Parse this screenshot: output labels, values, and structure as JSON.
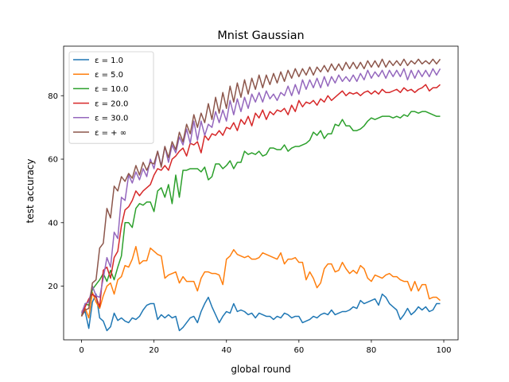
{
  "chart_data": {
    "type": "line",
    "title": "Mnist Gaussian",
    "xlabel": "global round",
    "ylabel": "test accuracy",
    "xlim": [
      -4.95,
      103.95
    ],
    "ylim": [
      3.1,
      95.6
    ],
    "xticks": [
      0,
      20,
      40,
      60,
      80,
      100
    ],
    "yticks": [
      20,
      40,
      60,
      80
    ],
    "grid": false,
    "legend": "top-left",
    "x": [
      0,
      1,
      2,
      3,
      4,
      5,
      6,
      7,
      8,
      9,
      10,
      11,
      12,
      13,
      14,
      15,
      16,
      17,
      18,
      19,
      20,
      21,
      22,
      23,
      24,
      25,
      26,
      27,
      28,
      29,
      30,
      31,
      32,
      33,
      34,
      35,
      36,
      37,
      38,
      39,
      40,
      41,
      42,
      43,
      44,
      45,
      46,
      47,
      48,
      49,
      50,
      51,
      52,
      53,
      54,
      55,
      56,
      57,
      58,
      59,
      60,
      61,
      62,
      63,
      64,
      65,
      66,
      67,
      68,
      69,
      70,
      71,
      72,
      73,
      74,
      75,
      76,
      77,
      78,
      79,
      80,
      81,
      82,
      83,
      84,
      85,
      86,
      87,
      88,
      89,
      90,
      91,
      92,
      93,
      94,
      95,
      96,
      97,
      98,
      99
    ],
    "series": [
      {
        "name": "ε = 1.0",
        "color": "#1f77b4",
        "values": [
          11.0,
          12.0,
          6.7,
          15.0,
          17.5,
          10.0,
          9.0,
          6.0,
          7.2,
          11.5,
          9.2,
          10.0,
          9.0,
          8.5,
          10.0,
          9.5,
          10.5,
          12.5,
          14.0,
          14.5,
          14.5,
          9.5,
          11.0,
          10.0,
          11.0,
          10.0,
          10.5,
          6.0,
          7.0,
          8.5,
          10.0,
          10.5,
          8.5,
          12.0,
          14.5,
          16.5,
          13.5,
          11.0,
          8.5,
          10.5,
          12.0,
          11.5,
          14.5,
          12.0,
          12.5,
          12.0,
          11.0,
          11.5,
          10.0,
          11.5,
          11.0,
          10.5,
          10.5,
          9.5,
          10.5,
          10.0,
          11.5,
          11.0,
          10.0,
          10.5,
          10.5,
          8.5,
          9.0,
          9.5,
          10.5,
          10.0,
          11.0,
          11.5,
          11.0,
          12.5,
          11.0,
          11.5,
          12.0,
          12.0,
          12.5,
          13.5,
          13.0,
          15.5,
          14.5,
          15.0,
          15.5,
          16.0,
          14.0,
          17.5,
          16.5,
          14.5,
          13.5,
          12.5,
          9.5,
          11.0,
          13.0,
          11.0,
          12.0,
          13.5,
          12.5,
          13.5,
          12.0,
          12.5,
          14.5,
          14.5
        ]
      },
      {
        "name": "ε = 5.0",
        "color": "#ff7f0e",
        "values": [
          12.0,
          13.0,
          10.0,
          18.0,
          15.0,
          13.0,
          17.0,
          20.0,
          21.0,
          17.5,
          22.0,
          23.0,
          26.5,
          26.0,
          28.5,
          32.5,
          27.0,
          28.0,
          28.0,
          32.0,
          31.0,
          30.0,
          29.5,
          22.5,
          23.5,
          24.0,
          24.5,
          21.0,
          23.0,
          21.5,
          21.5,
          21.5,
          18.5,
          22.5,
          24.5,
          24.5,
          24.0,
          24.0,
          23.5,
          20.5,
          28.5,
          29.5,
          31.5,
          30.0,
          29.5,
          29.0,
          29.5,
          28.5,
          28.5,
          29.0,
          30.5,
          30.0,
          29.5,
          29.0,
          28.5,
          30.5,
          27.0,
          28.5,
          28.5,
          29.0,
          27.5,
          27.5,
          22.0,
          24.5,
          22.5,
          19.5,
          21.0,
          25.5,
          27.0,
          27.0,
          24.5,
          25.0,
          27.5,
          25.5,
          24.0,
          25.0,
          24.0,
          26.5,
          25.5,
          22.5,
          21.5,
          23.5,
          23.0,
          22.5,
          23.5,
          24.0,
          23.0,
          23.0,
          22.0,
          21.5,
          21.5,
          18.5,
          21.5,
          18.5,
          20.5,
          20.5,
          16.0,
          16.5,
          16.5,
          15.5
        ]
      },
      {
        "name": "ε = 10.0",
        "color": "#2ca02c",
        "values": [
          10.5,
          14.5,
          14.0,
          19.0,
          20.5,
          22.0,
          24.0,
          21.5,
          25.0,
          22.0,
          26.0,
          29.5,
          40.0,
          40.0,
          38.5,
          44.5,
          46.0,
          45.5,
          46.5,
          46.5,
          43.5,
          50.0,
          51.0,
          48.0,
          52.0,
          46.0,
          55.0,
          48.0,
          56.5,
          56.5,
          57.0,
          57.0,
          57.0,
          56.0,
          57.5,
          53.5,
          54.5,
          58.5,
          58.5,
          57.0,
          58.0,
          59.5,
          57.0,
          59.0,
          59.0,
          62.5,
          61.5,
          62.0,
          61.5,
          62.5,
          61.0,
          61.5,
          63.5,
          63.5,
          63.0,
          63.0,
          64.5,
          62.5,
          63.5,
          64.0,
          64.0,
          64.5,
          65.0,
          66.0,
          68.5,
          67.5,
          69.0,
          66.5,
          68.0,
          68.0,
          71.0,
          70.5,
          72.5,
          70.5,
          70.5,
          69.0,
          69.0,
          69.5,
          70.5,
          72.0,
          73.0,
          72.5,
          73.0,
          73.5,
          73.5,
          73.5,
          73.0,
          73.5,
          73.0,
          74.0,
          73.5,
          75.0,
          75.0,
          74.5,
          75.0,
          75.0,
          74.5,
          74.0,
          73.5,
          73.5
        ]
      },
      {
        "name": "ε = 20.0",
        "color": "#d62728",
        "values": [
          10.5,
          13.5,
          16.0,
          17.5,
          16.5,
          13.5,
          25.0,
          26.0,
          22.5,
          29.0,
          31.0,
          39.0,
          44.0,
          45.0,
          47.0,
          50.0,
          48.5,
          50.0,
          51.0,
          52.0,
          55.0,
          57.0,
          56.5,
          58.0,
          56.5,
          60.0,
          61.0,
          62.5,
          63.5,
          61.0,
          65.0,
          64.5,
          65.5,
          62.0,
          67.5,
          66.0,
          68.0,
          67.5,
          69.0,
          67.5,
          70.0,
          69.5,
          71.5,
          69.0,
          72.5,
          71.0,
          73.5,
          70.5,
          74.5,
          73.0,
          75.5,
          72.5,
          75.0,
          74.0,
          75.5,
          75.0,
          76.0,
          74.0,
          77.0,
          75.0,
          78.5,
          76.5,
          78.0,
          77.5,
          78.5,
          77.0,
          79.0,
          78.0,
          80.0,
          78.5,
          79.5,
          80.5,
          81.5,
          80.0,
          81.0,
          80.5,
          81.0,
          80.0,
          81.0,
          81.5,
          80.5,
          81.5,
          80.5,
          82.0,
          81.0,
          81.0,
          81.5,
          82.0,
          81.0,
          82.5,
          81.5,
          82.0,
          81.0,
          82.0,
          82.5,
          83.5,
          81.5,
          82.5,
          82.5,
          83.5
        ]
      },
      {
        "name": "ε = 30.0",
        "color": "#9467bd",
        "values": [
          11.5,
          14.5,
          15.0,
          20.0,
          17.0,
          16.5,
          22.5,
          29.0,
          26.0,
          37.0,
          35.0,
          48.0,
          47.0,
          55.0,
          52.5,
          56.0,
          53.5,
          57.0,
          54.5,
          60.0,
          57.0,
          62.5,
          58.0,
          64.0,
          59.0,
          64.5,
          62.0,
          67.0,
          64.5,
          69.5,
          65.0,
          72.0,
          66.0,
          72.0,
          67.5,
          71.0,
          70.0,
          75.0,
          71.5,
          75.5,
          72.0,
          78.5,
          74.0,
          79.0,
          75.0,
          79.5,
          76.0,
          80.5,
          78.0,
          81.0,
          78.0,
          81.5,
          79.0,
          80.5,
          78.5,
          81.0,
          80.0,
          83.0,
          80.0,
          83.5,
          80.5,
          85.0,
          82.0,
          85.0,
          82.5,
          85.5,
          82.5,
          86.0,
          83.0,
          86.0,
          84.0,
          86.5,
          84.5,
          86.0,
          84.5,
          86.5,
          84.5,
          87.0,
          85.0,
          88.0,
          85.5,
          87.5,
          86.0,
          88.0,
          85.5,
          88.0,
          86.0,
          88.0,
          86.0,
          88.5,
          85.0,
          88.0,
          85.5,
          88.0,
          86.0,
          88.0,
          86.0,
          88.5,
          86.5,
          88.5
        ]
      },
      {
        "name": "ε = + ∞",
        "color": "#8c564b",
        "values": [
          10.5,
          12.5,
          13.0,
          21.0,
          22.0,
          32.0,
          33.5,
          44.5,
          41.5,
          51.5,
          50.0,
          54.5,
          53.0,
          55.5,
          54.0,
          58.0,
          55.0,
          59.0,
          56.5,
          59.0,
          58.5,
          62.5,
          57.5,
          64.0,
          60.5,
          65.5,
          63.0,
          68.5,
          65.5,
          71.0,
          68.0,
          74.0,
          70.0,
          74.5,
          71.5,
          77.5,
          72.5,
          79.5,
          74.5,
          81.0,
          76.0,
          83.0,
          78.0,
          84.0,
          79.5,
          85.0,
          80.5,
          85.5,
          82.0,
          86.5,
          82.5,
          86.5,
          83.5,
          87.0,
          84.0,
          87.5,
          84.5,
          88.0,
          85.5,
          88.5,
          86.0,
          88.5,
          86.5,
          89.0,
          86.5,
          89.0,
          87.5,
          89.5,
          87.5,
          90.0,
          88.0,
          90.0,
          88.0,
          90.5,
          88.5,
          90.5,
          88.5,
          90.5,
          88.5,
          91.0,
          89.0,
          91.0,
          89.0,
          91.5,
          89.0,
          91.0,
          89.5,
          91.0,
          89.5,
          91.5,
          89.5,
          91.0,
          90.0,
          91.5,
          90.0,
          91.0,
          90.0,
          91.5,
          90.0,
          91.5
        ]
      }
    ]
  }
}
